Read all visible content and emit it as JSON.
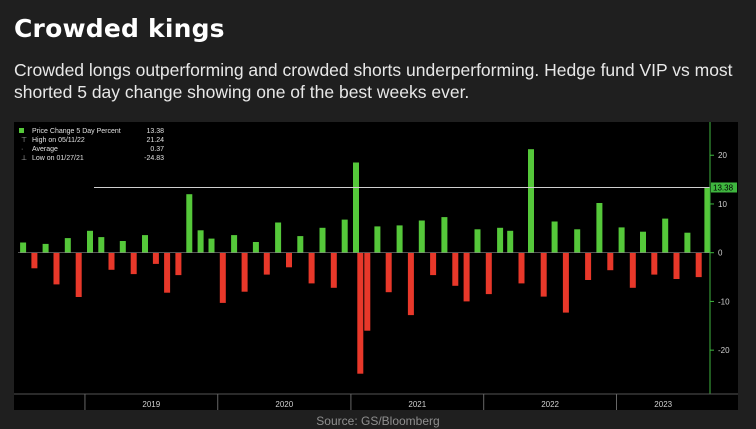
{
  "header": {
    "title": "Crowded kings",
    "subtitle": "Crowded longs outperforming and crowded shorts underperforming. Hedge fund VIP vs most shorted 5 day change showing one of the best weeks ever."
  },
  "footer": {
    "source": "Source: GS/Bloomberg"
  },
  "colors": {
    "up": "#55c83a",
    "down": "#e8382a",
    "background": "#000000",
    "page": "#1f1f1f",
    "axis": "#3fb63f"
  },
  "legend": {
    "items": [
      {
        "label": "Price Change 5 Day Percent",
        "value": "13.38",
        "marker": "green-square"
      },
      {
        "label": "High on 05/11/22",
        "value": "21.24",
        "marker": "high-tick"
      },
      {
        "label": "Average",
        "value": "0.37",
        "marker": "average-tick"
      },
      {
        "label": "Low on 01/27/21",
        "value": "-24.83",
        "marker": "low-tick"
      }
    ]
  },
  "chart_data": {
    "type": "bar",
    "title": "",
    "xlabel": "",
    "ylabel": "",
    "ylim": [
      -29,
      26
    ],
    "y_ticks": [
      20,
      10,
      0,
      -10,
      -20
    ],
    "y_tick_labels": [
      "20",
      "10",
      "0",
      "-10",
      "-20"
    ],
    "x_range": [
      "2018-07-01",
      "2023-09-15"
    ],
    "x_ticks": [
      {
        "label": "2019",
        "date": "2019-01-01"
      },
      {
        "label": "2020",
        "date": "2020-01-01"
      },
      {
        "label": "2021",
        "date": "2021-01-01"
      },
      {
        "label": "2022",
        "date": "2022-01-01"
      },
      {
        "label": "2023",
        "date": "2023-01-01"
      }
    ],
    "last_value": 13.38,
    "last_value_label": "13.38",
    "reference_line": 13.38,
    "series": [
      {
        "name": "Price Change 5 Day Percent",
        "points": [
          [
            "2018-07-15",
            2.1
          ],
          [
            "2018-08-15",
            -3.2
          ],
          [
            "2018-09-15",
            1.8
          ],
          [
            "2018-10-15",
            -6.5
          ],
          [
            "2018-11-15",
            3.0
          ],
          [
            "2018-12-15",
            -9.1
          ],
          [
            "2019-01-15",
            4.5
          ],
          [
            "2019-02-15",
            3.2
          ],
          [
            "2019-03-15",
            -3.5
          ],
          [
            "2019-04-15",
            2.4
          ],
          [
            "2019-05-15",
            -4.4
          ],
          [
            "2019-06-15",
            3.6
          ],
          [
            "2019-07-15",
            -2.3
          ],
          [
            "2019-08-15",
            -8.2
          ],
          [
            "2019-09-15",
            -4.6
          ],
          [
            "2019-10-15",
            12.0
          ],
          [
            "2019-11-15",
            4.6
          ],
          [
            "2019-12-15",
            2.9
          ],
          [
            "2020-01-15",
            -10.3
          ],
          [
            "2020-02-15",
            3.6
          ],
          [
            "2020-03-15",
            -8.0
          ],
          [
            "2020-04-15",
            2.2
          ],
          [
            "2020-05-15",
            -4.5
          ],
          [
            "2020-06-15",
            6.2
          ],
          [
            "2020-07-15",
            -3.0
          ],
          [
            "2020-08-15",
            3.4
          ],
          [
            "2020-09-15",
            -6.3
          ],
          [
            "2020-10-15",
            5.1
          ],
          [
            "2020-11-15",
            -7.2
          ],
          [
            "2020-12-15",
            6.8
          ],
          [
            "2021-01-15",
            18.5
          ],
          [
            "2021-01-27",
            -24.83
          ],
          [
            "2021-02-15",
            -16.0
          ],
          [
            "2021-03-15",
            5.4
          ],
          [
            "2021-04-15",
            -8.1
          ],
          [
            "2021-05-15",
            5.6
          ],
          [
            "2021-06-15",
            -12.8
          ],
          [
            "2021-07-15",
            6.6
          ],
          [
            "2021-08-15",
            -4.6
          ],
          [
            "2021-09-15",
            7.3
          ],
          [
            "2021-10-15",
            -6.8
          ],
          [
            "2021-11-15",
            -10.0
          ],
          [
            "2021-12-15",
            4.8
          ],
          [
            "2022-01-15",
            -8.5
          ],
          [
            "2022-02-15",
            5.1
          ],
          [
            "2022-03-15",
            4.5
          ],
          [
            "2022-04-15",
            -6.3
          ],
          [
            "2022-05-11",
            21.24
          ],
          [
            "2022-06-15",
            -9.0
          ],
          [
            "2022-07-15",
            6.4
          ],
          [
            "2022-08-15",
            -12.3
          ],
          [
            "2022-09-15",
            4.8
          ],
          [
            "2022-10-15",
            -5.6
          ],
          [
            "2022-11-15",
            10.2
          ],
          [
            "2022-12-15",
            -3.6
          ],
          [
            "2023-01-15",
            5.2
          ],
          [
            "2023-02-15",
            -7.2
          ],
          [
            "2023-03-15",
            4.3
          ],
          [
            "2023-04-15",
            -4.5
          ],
          [
            "2023-05-15",
            7.0
          ],
          [
            "2023-06-15",
            -5.4
          ],
          [
            "2023-07-15",
            4.1
          ],
          [
            "2023-08-15",
            -5.0
          ],
          [
            "2023-09-08",
            13.38
          ]
        ]
      }
    ]
  }
}
